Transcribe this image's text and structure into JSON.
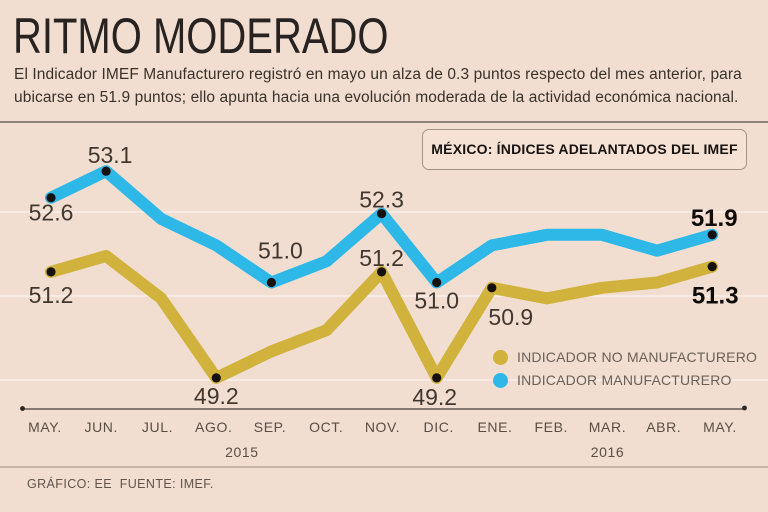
{
  "header": {
    "title": "RITMO MODERADO",
    "subtitle_lines": [
      "El Indicador IMEF Manufacturero registró en mayo un alza de 0.3 puntos respecto del mes anterior, para",
      "ubicarse en 51.9 puntos; ello apunta hacia una evolución moderada de la actividad económica nacional."
    ],
    "badge": "MÉXICO: ÍNDICES ADELANTADOS DEL IMEF"
  },
  "footer": {
    "credit": "GRÁFICO: EE  FUENTE: IMEF."
  },
  "colors": {
    "background": "#f1ded1",
    "manufacturero_blue": "#2eb8e8",
    "no_manufacturero_yellow": "#d0b23c",
    "point_dot": "#16110d",
    "axis_line": "#463d35"
  },
  "chart_data": {
    "type": "line",
    "categories": [
      "MAY.",
      "JUN.",
      "JUL.",
      "AGO.",
      "SEP.",
      "OCT.",
      "NOV.",
      "DIC.",
      "ENE.",
      "FEB.",
      "MAR.",
      "ABR.",
      "MAY."
    ],
    "year_labels": [
      {
        "label": "2015",
        "index": 3.5
      },
      {
        "label": "2016",
        "index": 10
      }
    ],
    "ylim": [
      48.9,
      53.6
    ],
    "yaxis_visible": false,
    "grid": "subtle-horizontal",
    "legend_position": "inside-bottom-right",
    "series": [
      {
        "name": "INDICADOR NO MANUFACTURERO",
        "color": "#d0b23c",
        "values": [
          51.2,
          51.5,
          50.7,
          49.2,
          49.7,
          50.1,
          51.2,
          49.2,
          50.9,
          50.7,
          50.9,
          51.0,
          51.3
        ],
        "labeled_points": [
          {
            "index": 0,
            "text": "51.2",
            "dx": 0,
            "dy": 31,
            "bold": false
          },
          {
            "index": 3,
            "text": "49.2",
            "dx": 0,
            "dy": 26,
            "bold": false
          },
          {
            "index": 6,
            "text": "51.2",
            "dx": 0,
            "dy": -6,
            "bold": false
          },
          {
            "index": 7,
            "text": "49.2",
            "dx": -2,
            "dy": 27,
            "bold": false
          },
          {
            "index": 8,
            "text": "50.9",
            "dx": 19,
            "dy": 37,
            "bold": false
          },
          {
            "index": 12,
            "text": "51.3",
            "dx": 3,
            "dy": 37,
            "bold": true
          }
        ]
      },
      {
        "name": "INDICADOR MANUFACTURERO",
        "color": "#2eb8e8",
        "values": [
          52.6,
          53.1,
          52.2,
          51.7,
          51.0,
          51.4,
          52.3,
          51.0,
          51.7,
          51.9,
          51.9,
          51.6,
          51.9
        ],
        "labeled_points": [
          {
            "index": 0,
            "text": "52.6",
            "dx": 0,
            "dy": 23,
            "bold": false
          },
          {
            "index": 1,
            "text": "53.1",
            "dx": 4,
            "dy": -8,
            "bold": false
          },
          {
            "index": 4,
            "text": "51.0",
            "dx": 9,
            "dy": -24,
            "bold": false
          },
          {
            "index": 6,
            "text": "52.3",
            "dx": 0,
            "dy": -6,
            "bold": false
          },
          {
            "index": 7,
            "text": "51.0",
            "dx": 0,
            "dy": 26,
            "bold": false
          },
          {
            "index": 12,
            "text": "51.9",
            "dx": 2,
            "dy": -9,
            "bold": true
          }
        ]
      }
    ]
  }
}
